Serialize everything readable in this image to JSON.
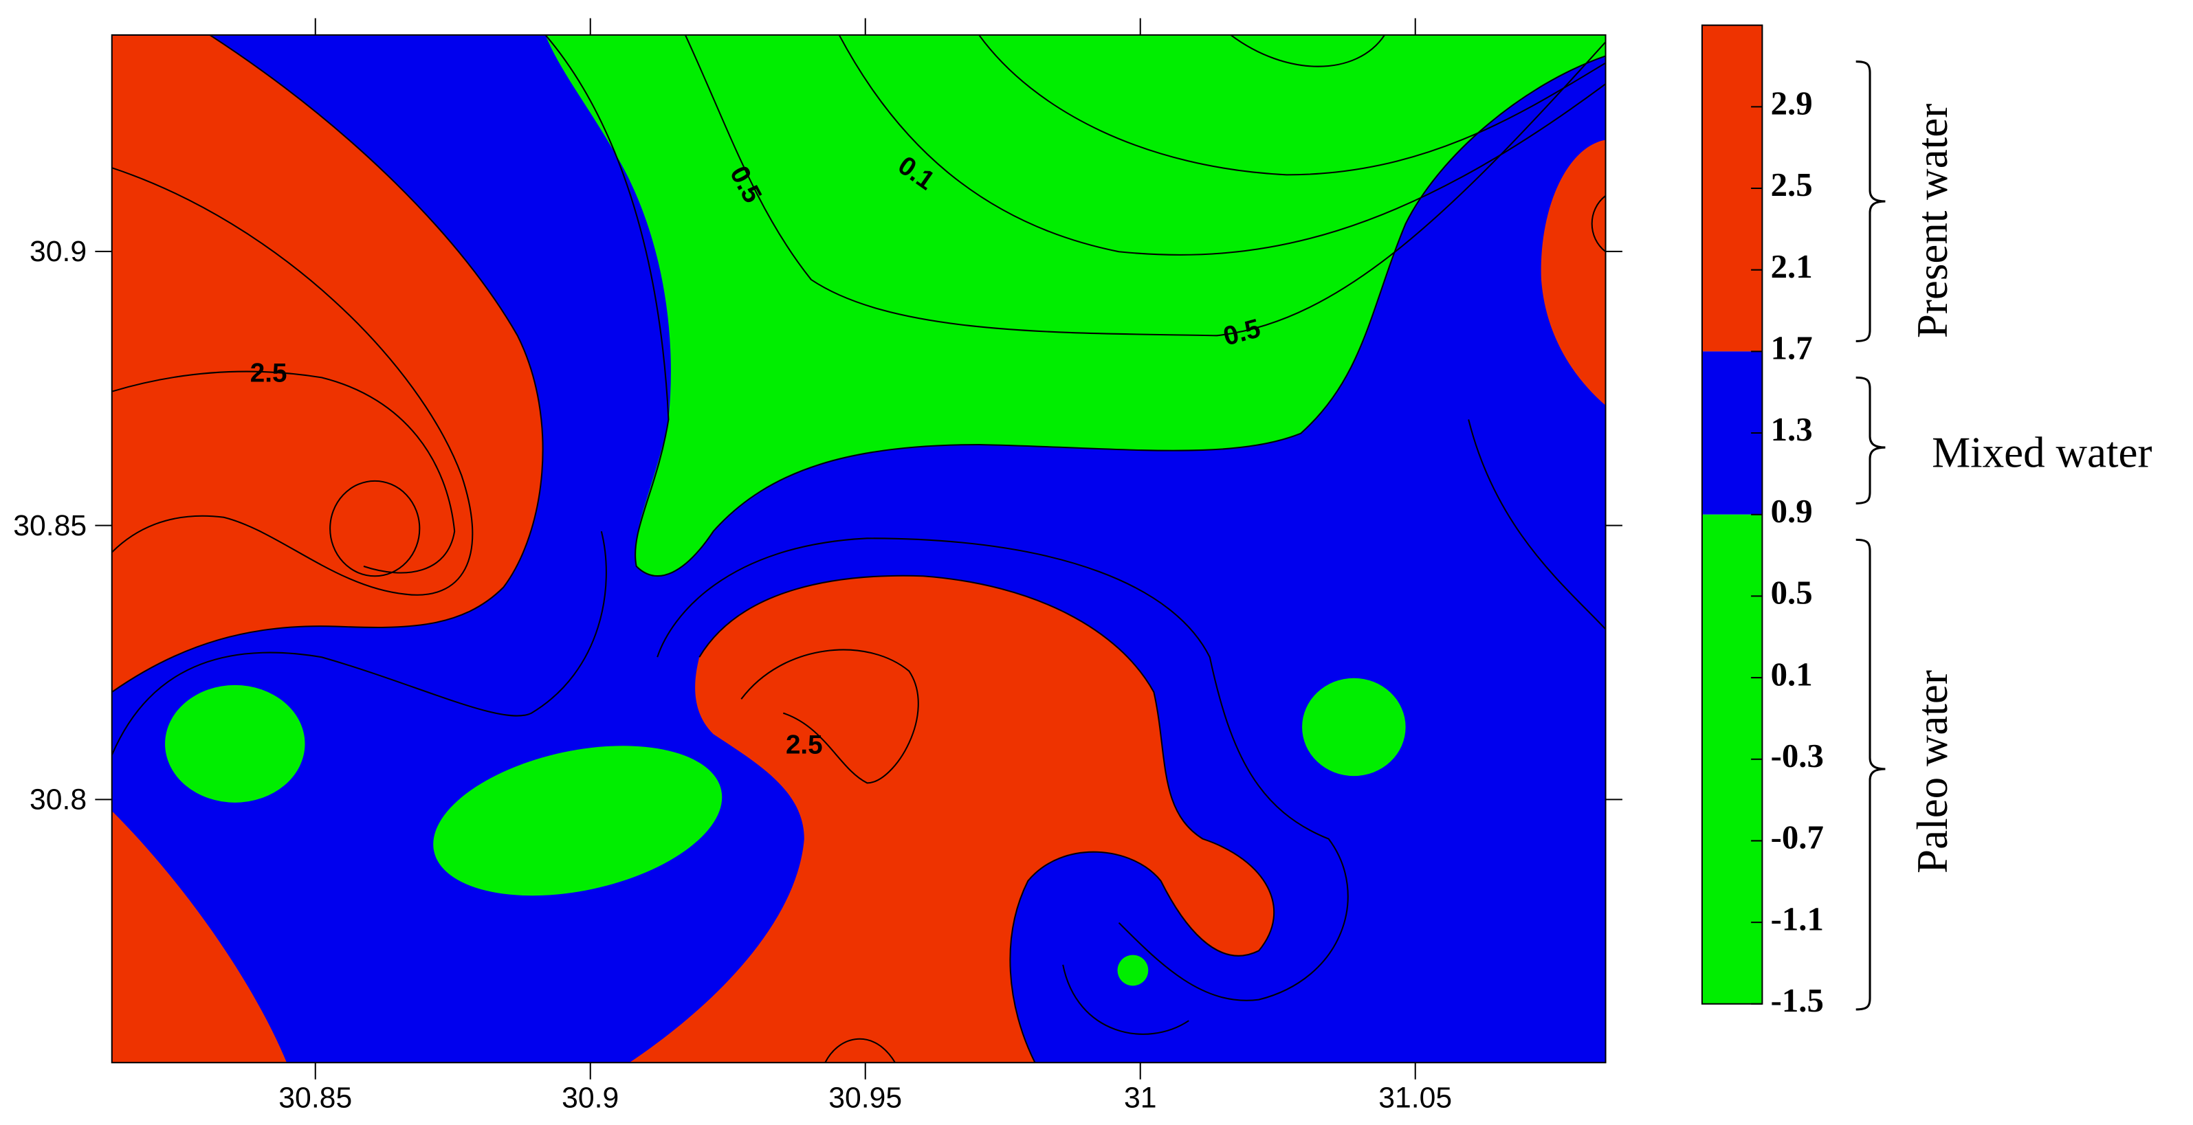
{
  "chart_data": {
    "type": "contour",
    "xlim": [
      30.813,
      31.0846
    ],
    "xticks": [
      30.85,
      30.9,
      30.95,
      31,
      31.05
    ],
    "ylim": [
      30.752,
      30.9395
    ],
    "yticks": [
      30.8,
      30.85,
      30.9
    ],
    "colorbar_lim": [
      -1.5,
      3.3
    ],
    "colorbar_ticks": [
      2.9,
      2.5,
      2.1,
      1.7,
      1.3,
      0.9,
      0.5,
      0.1,
      -0.3,
      -0.7,
      -1.1,
      -1.5
    ],
    "bands": [
      {
        "name": "Present water",
        "from": 1.7,
        "to": 3.3,
        "color": "#ee3300"
      },
      {
        "name": "Mixed water",
        "from": 0.9,
        "to": 1.7,
        "color": "#0000ee"
      },
      {
        "name": "Paleo water",
        "from": -1.5,
        "to": 0.9,
        "color": "#00ee00"
      }
    ],
    "contour_labels": [
      2.5,
      0.5,
      0.1,
      0.5,
      2.5
    ]
  }
}
